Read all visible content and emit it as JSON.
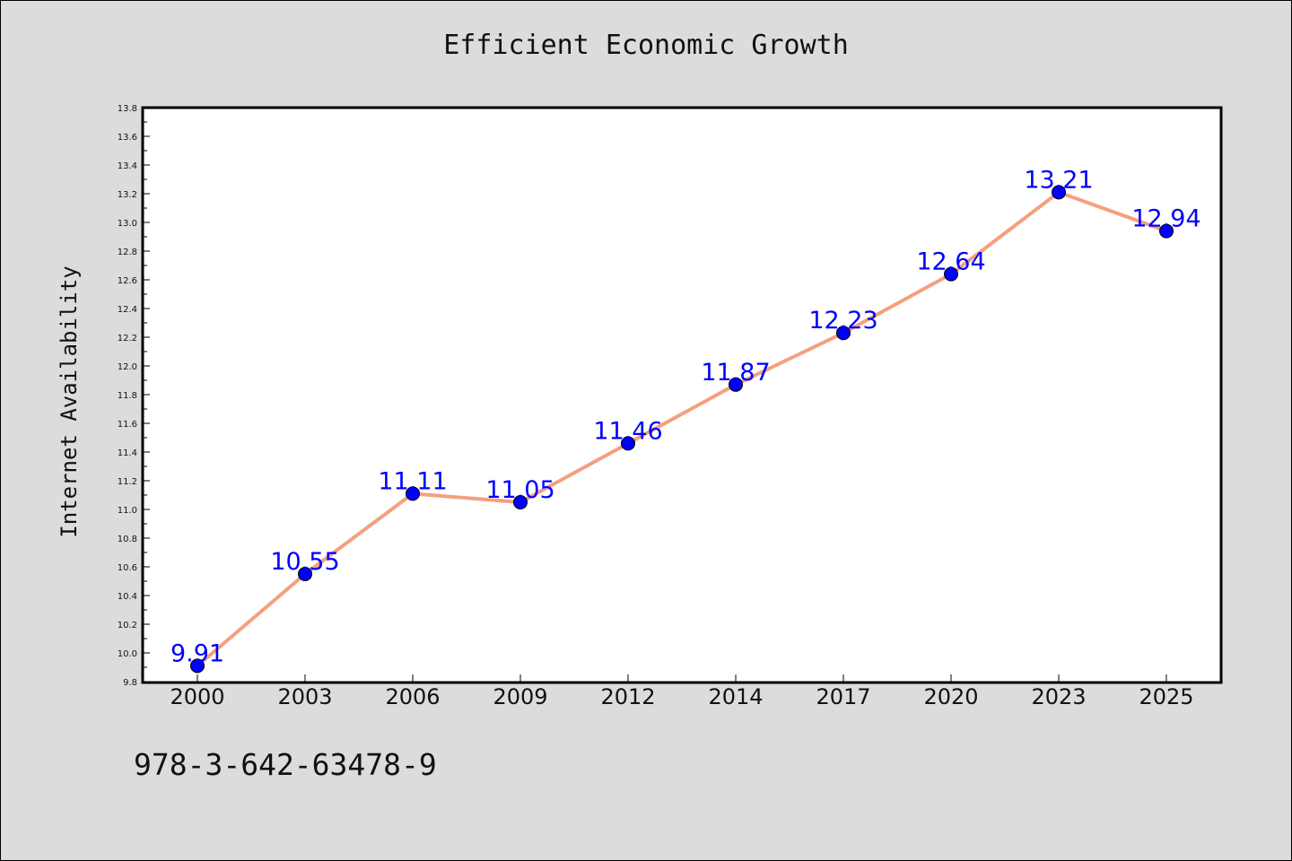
{
  "chart_data": {
    "type": "line",
    "title": "Efficient Economic Growth",
    "xlabel": "",
    "ylabel": "Internet Availability",
    "categories": [
      "2000",
      "2003",
      "2006",
      "2009",
      "2012",
      "2014",
      "2017",
      "2020",
      "2023",
      "2025"
    ],
    "values": [
      9.91,
      10.55,
      11.11,
      11.05,
      11.46,
      11.87,
      12.23,
      12.64,
      13.21,
      12.94
    ],
    "data_labels": [
      "9.91",
      "10.55",
      "11.11",
      "11.05",
      "11.46",
      "11.87",
      "12.23",
      "12.64",
      "13.21",
      "12.94"
    ],
    "ylim": [
      9.8,
      13.8
    ],
    "yticks": [
      "9.8",
      "10.0",
      "10.2",
      "10.4",
      "10.6",
      "10.8",
      "11.0",
      "11.2",
      "11.4",
      "11.6",
      "11.8",
      "12.0",
      "12.2",
      "12.4",
      "12.6",
      "12.8",
      "13.0",
      "13.2",
      "13.4",
      "13.6",
      "13.8"
    ],
    "grid": false,
    "legend": "none",
    "line_color": "#f4a07e",
    "marker_color": "#0000ff",
    "label_color": "#0000ff"
  },
  "footer": {
    "code": "978-3-642-63478-9"
  }
}
